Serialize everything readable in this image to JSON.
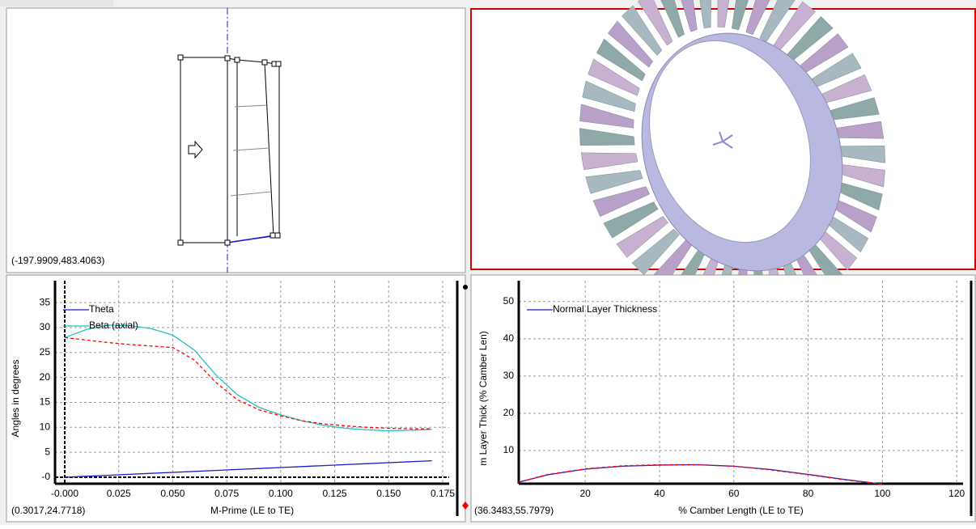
{
  "meridional_view": {
    "coordinates": "(-197.9909,483.4063)"
  },
  "charts": [
    {
      "type": "line",
      "xlabel": "M-Prime (LE to TE)",
      "ylabel": "Angles in degrees",
      "coordinates": "(0.3017,24.7718)",
      "xlim": [
        -0.0045,
        0.178
      ],
      "ylim": [
        -1.3,
        39.4
      ],
      "grid": true,
      "legend": "upper left",
      "xticks": [
        {
          "value": 0,
          "label": "-0.000"
        },
        {
          "value": 0.025,
          "label": "0.025"
        },
        {
          "value": 0.05,
          "label": "0.050"
        },
        {
          "value": 0.075,
          "label": "0.075"
        },
        {
          "value": 0.1,
          "label": "0.100"
        },
        {
          "value": 0.125,
          "label": "0.125"
        },
        {
          "value": 0.15,
          "label": "0.150"
        },
        {
          "value": 0.175,
          "label": "0.175"
        }
      ],
      "yticks": [
        {
          "value": 0,
          "label": "-0"
        },
        5,
        10,
        15,
        20,
        25,
        30,
        35
      ],
      "x": [
        0,
        0.01,
        0.02,
        0.03,
        0.04,
        0.05,
        0.06,
        0.07,
        0.08,
        0.09,
        0.1,
        0.11,
        0.12,
        0.13,
        0.14,
        0.15,
        0.16,
        0.17
      ],
      "series": [
        {
          "name": "Theta",
          "color": "#1a1ad0",
          "values": [
            0,
            0.19,
            0.39,
            0.58,
            0.78,
            0.97,
            1.16,
            1.36,
            1.55,
            1.75,
            1.94,
            2.14,
            2.33,
            2.52,
            2.72,
            2.91,
            3.11,
            3.3
          ]
        },
        {
          "name": "Beta (axial)",
          "color": "#22c0c0",
          "values": [
            28,
            29.6,
            30.5,
            30.4,
            29.8,
            28.5,
            25.5,
            20.5,
            16.5,
            14,
            12.5,
            11.3,
            10.4,
            9.8,
            9.5,
            9.3,
            9.4,
            9.6
          ]
        },
        {
          "color": "#ff0000",
          "dashed": true,
          "values": [
            28,
            27.5,
            27,
            26.6,
            26.3,
            26,
            23.5,
            19,
            15.5,
            13.5,
            12.3,
            11.3,
            10.7,
            10.3,
            10,
            9.8,
            9.7,
            9.7
          ]
        }
      ]
    },
    {
      "type": "line",
      "xlabel": "% Camber Length (LE to TE)",
      "ylabel": "m Layer Thick (% Camber Len)",
      "coordinates": "(36.3483,55.7979)",
      "xlim": [
        2.1,
        121.7
      ],
      "ylim": [
        1.1,
        55.6
      ],
      "grid": true,
      "legend": "upper left",
      "xticks": [
        20,
        40,
        60,
        80,
        100,
        120
      ],
      "yticks": [
        10,
        20,
        30,
        40,
        50
      ],
      "x": [
        2,
        10,
        20,
        30,
        40,
        50,
        60,
        70,
        80,
        90,
        100
      ],
      "series": [
        {
          "name": "Normal Layer Thickness",
          "color": "#1a1ad0",
          "values": [
            1.5,
            3.5,
            5,
            5.8,
            6.1,
            6.2,
            5.8,
            4.9,
            3.6,
            2.2,
            1
          ]
        },
        {
          "color": "#ff0000",
          "dashed": true,
          "values": [
            1.5,
            3.6,
            5.1,
            5.9,
            6.2,
            6.2,
            5.8,
            4.8,
            3.5,
            2.1,
            1
          ]
        }
      ]
    }
  ]
}
